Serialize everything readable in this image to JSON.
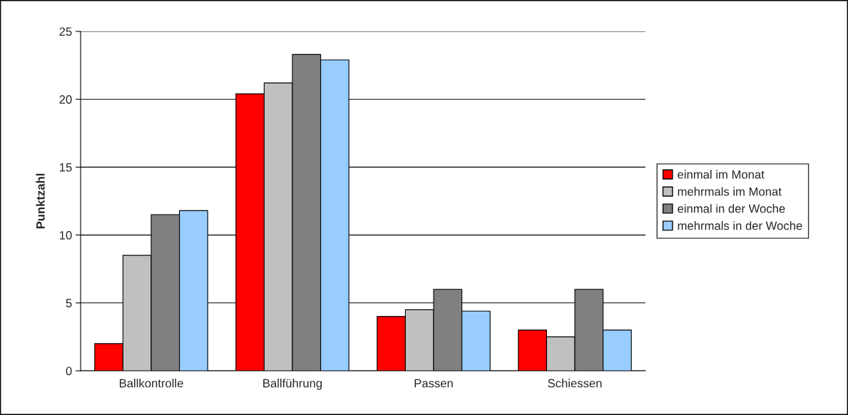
{
  "chart_data": {
    "type": "bar",
    "ylabel": "Punktzahl",
    "categories": [
      "Ballkontrolle",
      "Ballführung",
      "Passen",
      "Schiessen"
    ],
    "series": [
      {
        "name": "einmal im Monat",
        "color": "#ff0000",
        "values": [
          2.0,
          20.4,
          4.0,
          3.0
        ]
      },
      {
        "name": "mehrmals im Monat",
        "color": "#c0c0c0",
        "values": [
          8.5,
          21.2,
          4.5,
          2.5
        ]
      },
      {
        "name": "einmal in der Woche",
        "color": "#808080",
        "values": [
          11.5,
          23.3,
          6.0,
          6.0
        ]
      },
      {
        "name": "mehrmals in der Woche",
        "color": "#99ccff",
        "values": [
          11.8,
          22.9,
          4.4,
          3.0
        ]
      }
    ],
    "ylim": [
      0,
      25
    ],
    "yticks": [
      0,
      5,
      10,
      15,
      20,
      25
    ],
    "grid": "y",
    "legend": "right"
  }
}
